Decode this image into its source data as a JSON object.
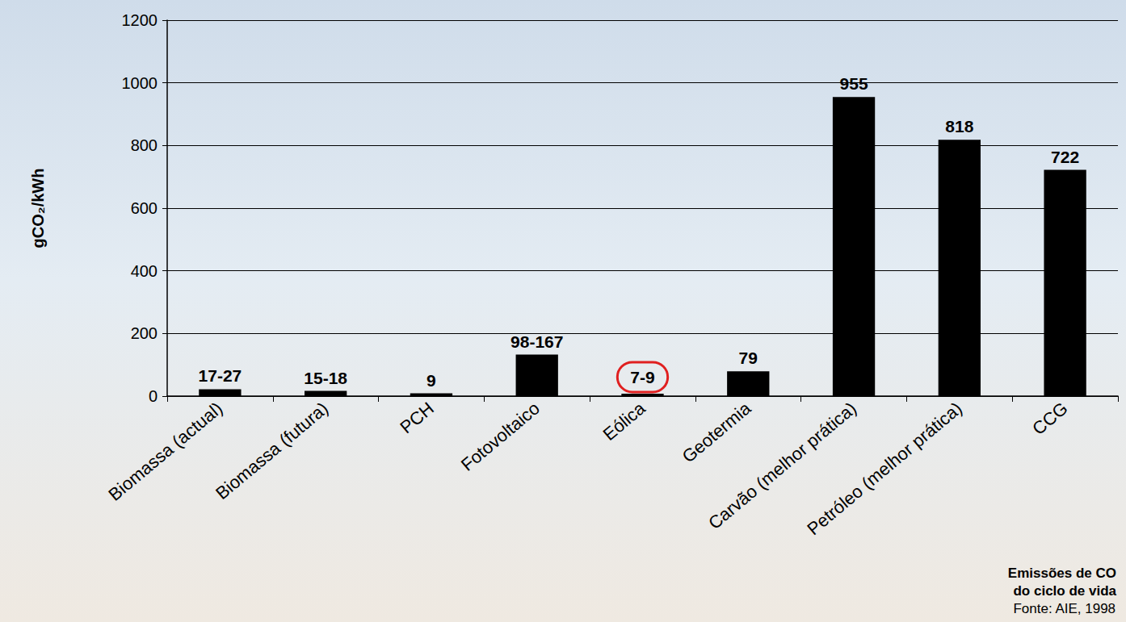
{
  "chart_data": {
    "type": "bar",
    "y_label": "gCO₂/kWh",
    "categories": [
      "Biomassa (actual)",
      "Biomassa (futura)",
      "PCH",
      "Fotovoltaico",
      "Eólica",
      "Geotermia",
      "Carvão (melhor prática)",
      "Petróleo (melhor prática)",
      "CCG"
    ],
    "values": [
      22,
      16.5,
      9,
      132.5,
      8,
      79,
      955,
      818,
      722
    ],
    "value_labels": [
      "17-27",
      "15-18",
      "9",
      "98-167",
      "7-9",
      "79",
      "955",
      "818",
      "722"
    ],
    "color": "#000000",
    "ylim": [
      0,
      1200
    ],
    "yticks": [
      0,
      200,
      400,
      600,
      800,
      1000,
      1200
    ],
    "grid": true,
    "data_labels": true,
    "annotation": [
      "Emissões de CO",
      "do ciclo de vida",
      "Fonte: AIE, 1998"
    ]
  }
}
